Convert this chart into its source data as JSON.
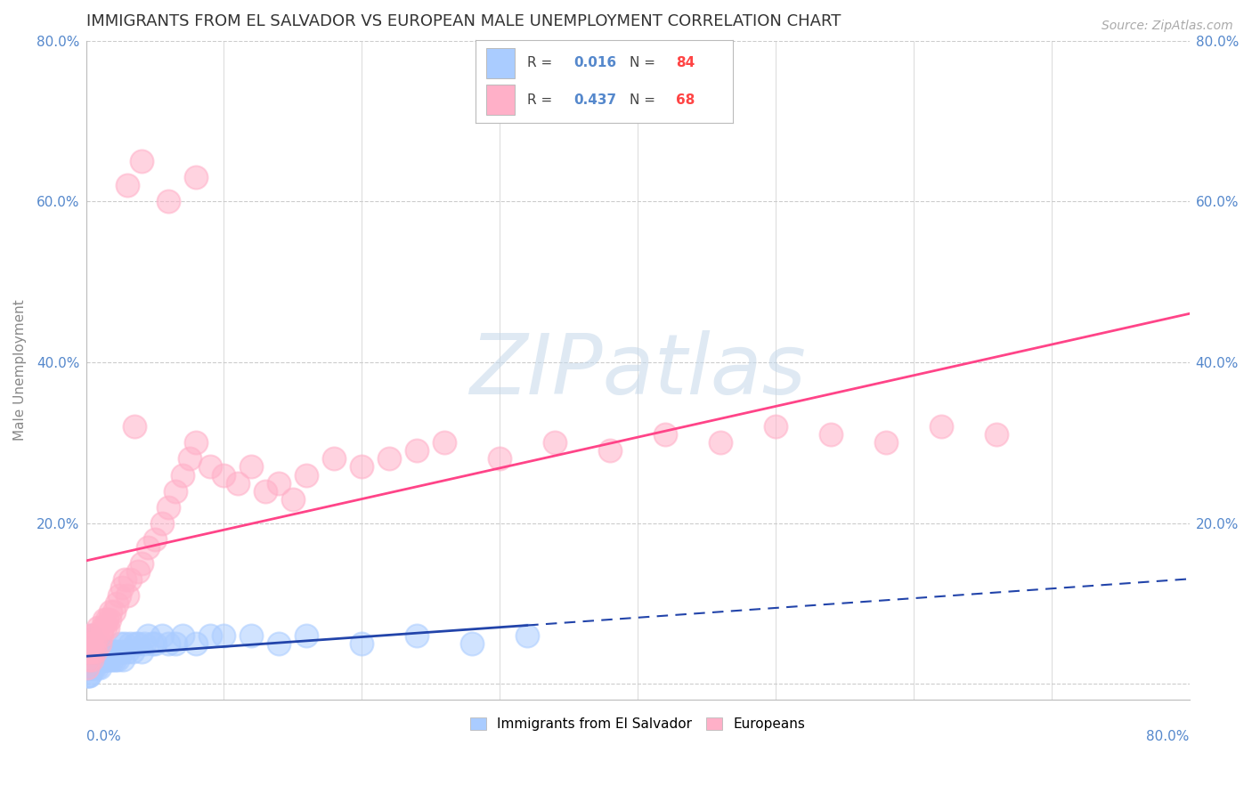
{
  "title": "IMMIGRANTS FROM EL SALVADOR VS EUROPEAN MALE UNEMPLOYMENT CORRELATION CHART",
  "source": "Source: ZipAtlas.com",
  "ylabel": "Male Unemployment",
  "xlim": [
    0.0,
    0.8
  ],
  "ylim": [
    -0.02,
    0.8
  ],
  "ytick_values": [
    0.0,
    0.2,
    0.4,
    0.6,
    0.8
  ],
  "background_color": "#FFFFFF",
  "grid_color": "#CCCCCC",
  "title_fontsize": 13,
  "tick_color": "#5588CC",
  "watermark_text": "ZIPatlas",
  "series": [
    {
      "name": "Immigrants from El Salvador",
      "R": 0.016,
      "N": 84,
      "scatter_color": "#AACCFF",
      "scatter_edge": "#88AAEE",
      "line_color": "#2244AA",
      "points_x": [
        0.001,
        0.001,
        0.001,
        0.001,
        0.002,
        0.002,
        0.002,
        0.002,
        0.002,
        0.003,
        0.003,
        0.003,
        0.003,
        0.004,
        0.004,
        0.004,
        0.005,
        0.005,
        0.005,
        0.005,
        0.006,
        0.006,
        0.006,
        0.007,
        0.007,
        0.007,
        0.008,
        0.008,
        0.008,
        0.009,
        0.009,
        0.01,
        0.01,
        0.01,
        0.011,
        0.011,
        0.012,
        0.012,
        0.013,
        0.013,
        0.014,
        0.014,
        0.015,
        0.015,
        0.016,
        0.017,
        0.018,
        0.019,
        0.02,
        0.021,
        0.022,
        0.023,
        0.025,
        0.026,
        0.027,
        0.028,
        0.03,
        0.032,
        0.034,
        0.036,
        0.038,
        0.04,
        0.042,
        0.045,
        0.048,
        0.05,
        0.055,
        0.06,
        0.065,
        0.07,
        0.08,
        0.09,
        0.1,
        0.12,
        0.14,
        0.16,
        0.2,
        0.24,
        0.28,
        0.32,
        0.0,
        0.001,
        0.001,
        0.002
      ],
      "points_y": [
        0.03,
        0.04,
        0.05,
        0.02,
        0.03,
        0.04,
        0.02,
        0.05,
        0.01,
        0.03,
        0.04,
        0.02,
        0.06,
        0.03,
        0.04,
        0.02,
        0.03,
        0.04,
        0.05,
        0.02,
        0.03,
        0.04,
        0.02,
        0.03,
        0.04,
        0.05,
        0.03,
        0.04,
        0.02,
        0.04,
        0.03,
        0.04,
        0.03,
        0.02,
        0.04,
        0.03,
        0.04,
        0.03,
        0.04,
        0.03,
        0.04,
        0.03,
        0.04,
        0.03,
        0.04,
        0.03,
        0.04,
        0.03,
        0.04,
        0.03,
        0.04,
        0.03,
        0.05,
        0.04,
        0.03,
        0.05,
        0.04,
        0.05,
        0.04,
        0.05,
        0.05,
        0.04,
        0.05,
        0.06,
        0.05,
        0.05,
        0.06,
        0.05,
        0.05,
        0.06,
        0.05,
        0.06,
        0.06,
        0.06,
        0.05,
        0.06,
        0.05,
        0.06,
        0.05,
        0.06,
        0.02,
        0.01,
        0.02,
        0.01
      ]
    },
    {
      "name": "Europeans",
      "R": 0.437,
      "N": 68,
      "scatter_color": "#FFB0C8",
      "scatter_edge": "#FF88AA",
      "line_color": "#FF4488",
      "points_x": [
        0.001,
        0.001,
        0.002,
        0.002,
        0.003,
        0.003,
        0.004,
        0.004,
        0.005,
        0.005,
        0.006,
        0.007,
        0.008,
        0.009,
        0.01,
        0.011,
        0.012,
        0.013,
        0.014,
        0.015,
        0.016,
        0.017,
        0.018,
        0.02,
        0.022,
        0.024,
        0.026,
        0.028,
        0.03,
        0.032,
        0.035,
        0.038,
        0.04,
        0.045,
        0.05,
        0.055,
        0.06,
        0.065,
        0.07,
        0.075,
        0.08,
        0.09,
        0.1,
        0.11,
        0.12,
        0.13,
        0.14,
        0.15,
        0.16,
        0.18,
        0.2,
        0.22,
        0.24,
        0.26,
        0.3,
        0.34,
        0.38,
        0.42,
        0.46,
        0.5,
        0.54,
        0.58,
        0.62,
        0.66,
        0.04,
        0.06,
        0.08,
        0.03
      ],
      "points_y": [
        0.04,
        0.02,
        0.05,
        0.03,
        0.04,
        0.06,
        0.03,
        0.05,
        0.04,
        0.06,
        0.05,
        0.04,
        0.06,
        0.07,
        0.05,
        0.06,
        0.07,
        0.08,
        0.07,
        0.08,
        0.07,
        0.08,
        0.09,
        0.09,
        0.1,
        0.11,
        0.12,
        0.13,
        0.11,
        0.13,
        0.32,
        0.14,
        0.15,
        0.17,
        0.18,
        0.2,
        0.22,
        0.24,
        0.26,
        0.28,
        0.3,
        0.27,
        0.26,
        0.25,
        0.27,
        0.24,
        0.25,
        0.23,
        0.26,
        0.28,
        0.27,
        0.28,
        0.29,
        0.3,
        0.28,
        0.3,
        0.29,
        0.31,
        0.3,
        0.32,
        0.31,
        0.3,
        0.32,
        0.31,
        0.65,
        0.6,
        0.63,
        0.62
      ]
    }
  ]
}
